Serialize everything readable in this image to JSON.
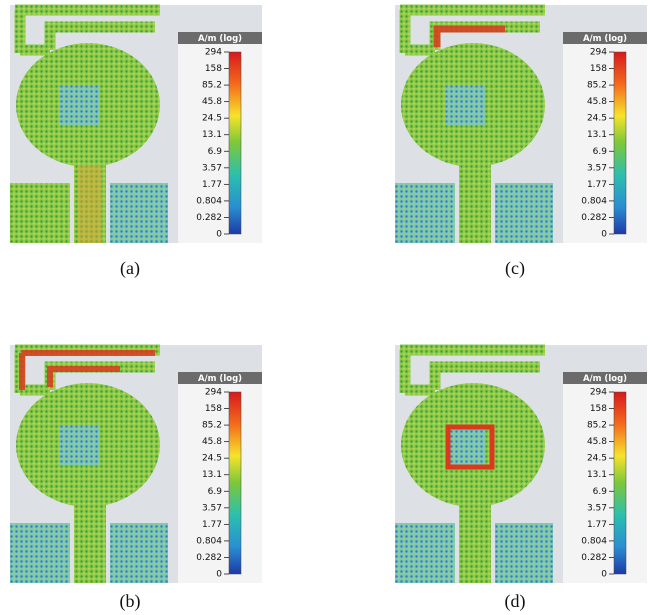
{
  "colorbar": {
    "title": "A/m (log)",
    "ticks": [
      "294",
      "158",
      "85.2",
      "45.8",
      "24.5",
      "13.1",
      "6.9",
      "3.57",
      "1.77",
      "0.804",
      "0.282",
      "0"
    ]
  },
  "panels": [
    {
      "label": "(a)"
    },
    {
      "label": "(b)"
    },
    {
      "label": "(c)"
    },
    {
      "label": "(d)"
    }
  ]
}
